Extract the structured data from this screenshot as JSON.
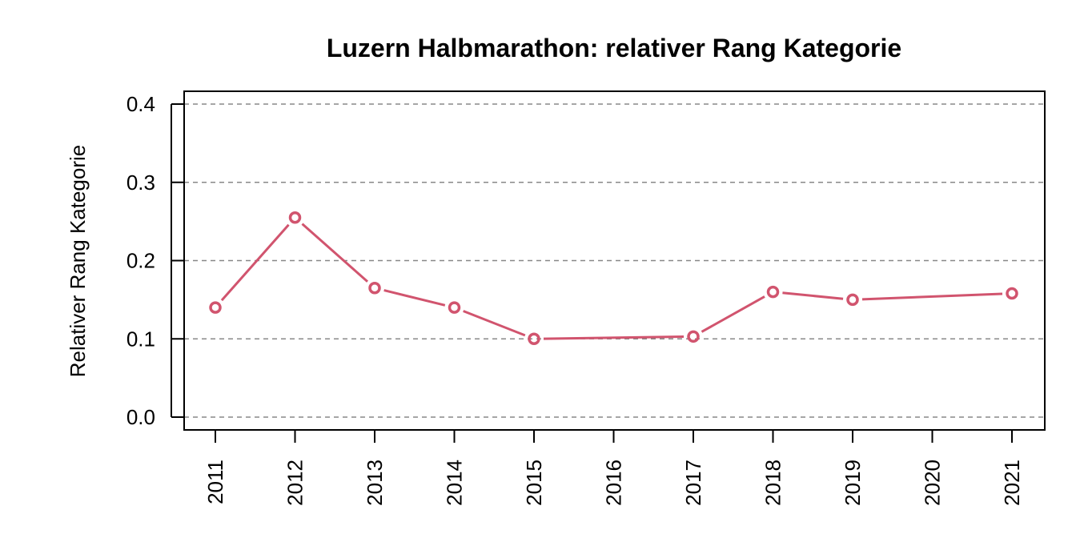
{
  "chart_data": {
    "type": "line",
    "title": "Luzern Halbmarathon: relativer Rang Kategorie",
    "xlabel": "",
    "ylabel": "Relativer Rang Kategorie",
    "categories": [
      "2011",
      "2012",
      "2013",
      "2014",
      "2015",
      "2016",
      "2017",
      "2018",
      "2019",
      "2020",
      "2021"
    ],
    "y_ticks": [
      "0.0",
      "0.1",
      "0.2",
      "0.3",
      "0.4"
    ],
    "ylim": [
      0,
      0.4
    ],
    "grid": "horizontal dashed",
    "series": [
      {
        "color": "#d1546e",
        "points": [
          {
            "x": "2011",
            "y": 0.14
          },
          {
            "x": "2012",
            "y": 0.255
          },
          {
            "x": "2013",
            "y": 0.165
          },
          {
            "x": "2014",
            "y": 0.14
          },
          {
            "x": "2015",
            "y": 0.1
          },
          {
            "x": "2017",
            "y": 0.103
          },
          {
            "x": "2018",
            "y": 0.16
          },
          {
            "x": "2019",
            "y": 0.15
          },
          {
            "x": "2021",
            "y": 0.158
          }
        ]
      }
    ]
  }
}
